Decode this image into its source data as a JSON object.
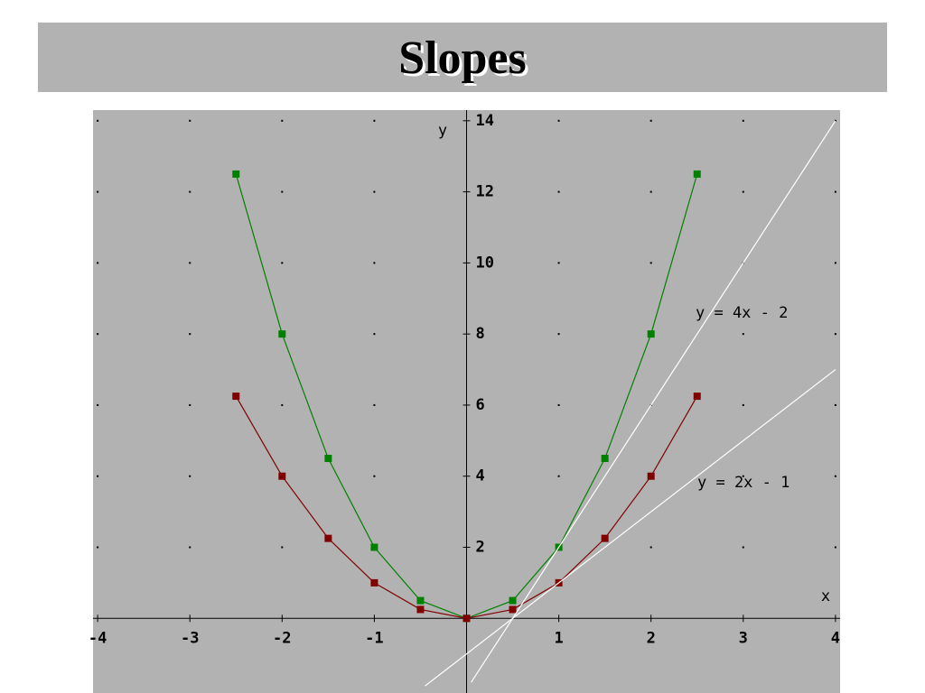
{
  "title": "Slopes",
  "chart_data": {
    "type": "line",
    "x_label": "x",
    "y_label": "y",
    "xlim": [
      -4.05,
      4.05
    ],
    "ylim": [
      -2.1,
      14.3
    ],
    "xticks": [
      -4,
      -3,
      -2,
      -1,
      1,
      2,
      3,
      4
    ],
    "yticks": [
      2,
      4,
      6,
      8,
      10,
      12,
      14
    ],
    "grid": true,
    "series": [
      {
        "color": "#008000",
        "markers": true,
        "x": [
          -2.5,
          -2,
          -1.5,
          -1,
          -0.5,
          0,
          0.5,
          1,
          1.5,
          2,
          2.5
        ],
        "values": [
          12.5,
          8,
          4.5,
          2,
          0.5,
          0,
          0.5,
          2,
          4.5,
          8,
          12.5
        ]
      },
      {
        "color": "#800000",
        "markers": true,
        "x": [
          -2.5,
          -2,
          -1.5,
          -1,
          -0.5,
          0,
          0.5,
          1,
          1.5,
          2,
          2.5
        ],
        "values": [
          6.25,
          4,
          2.25,
          1,
          0.25,
          0,
          0.25,
          1,
          2.25,
          4,
          6.25
        ]
      },
      {
        "name": "y = 4x - 2",
        "color": "#ffffff",
        "markers": false,
        "x": [
          0.05,
          4
        ],
        "values": [
          -1.8,
          14
        ]
      },
      {
        "name": "y = 2x - 1",
        "color": "#ffffff",
        "markers": false,
        "x": [
          -0.45,
          4
        ],
        "values": [
          -1.9,
          7
        ]
      }
    ]
  }
}
